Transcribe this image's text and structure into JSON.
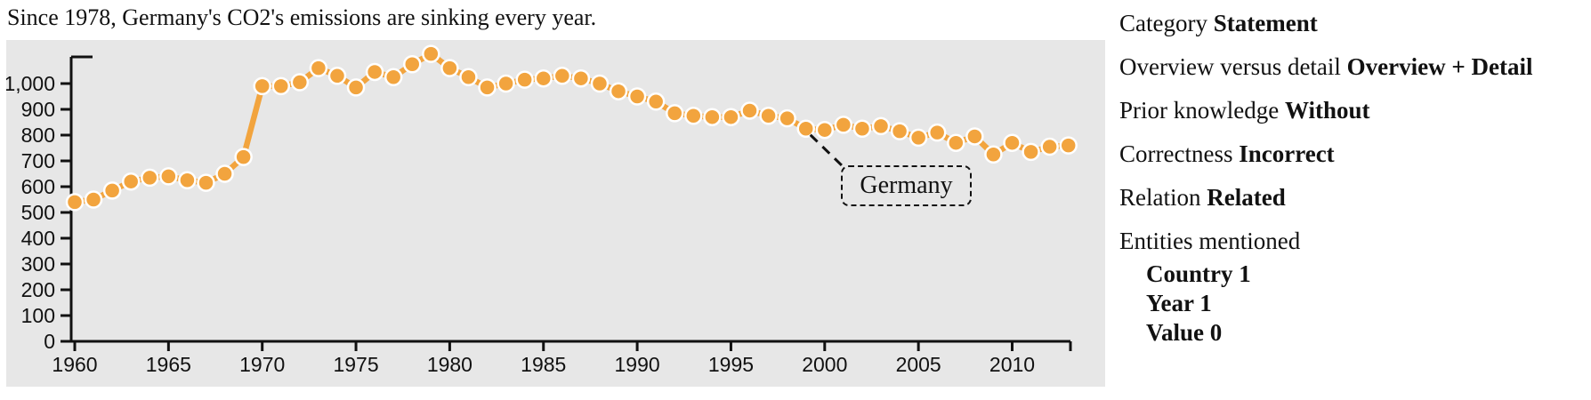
{
  "title": "Since 1978, Germany's CO2's emissions are sinking every year.",
  "chart_data": {
    "type": "line",
    "title": "Since 1978, Germany's CO2's emissions are sinking every year.",
    "series": [
      {
        "name": "Germany",
        "x": [
          1960,
          1961,
          1962,
          1963,
          1964,
          1965,
          1966,
          1967,
          1968,
          1969,
          1970,
          1971,
          1972,
          1973,
          1974,
          1975,
          1976,
          1977,
          1978,
          1979,
          1980,
          1981,
          1982,
          1983,
          1984,
          1985,
          1986,
          1987,
          1988,
          1989,
          1990,
          1991,
          1992,
          1993,
          1994,
          1995,
          1996,
          1997,
          1998,
          1999,
          2000,
          2001,
          2002,
          2003,
          2004,
          2005,
          2006,
          2007,
          2008,
          2009,
          2010,
          2011,
          2012,
          2013
        ],
        "values": [
          540,
          550,
          585,
          620,
          635,
          640,
          625,
          615,
          650,
          715,
          990,
          990,
          1005,
          1060,
          1030,
          985,
          1045,
          1025,
          1075,
          1115,
          1060,
          1025,
          985,
          1000,
          1015,
          1020,
          1030,
          1020,
          1000,
          970,
          950,
          930,
          885,
          875,
          870,
          870,
          895,
          875,
          865,
          825,
          820,
          840,
          825,
          835,
          815,
          790,
          810,
          770,
          795,
          725,
          770,
          735,
          755,
          760
        ]
      }
    ],
    "xlabel": "",
    "ylabel": "",
    "xlim": [
      1960,
      2013
    ],
    "ylim": [
      0,
      1120
    ],
    "xticks": [
      1960,
      1965,
      1970,
      1975,
      1980,
      1985,
      1990,
      1995,
      2000,
      2005,
      2010
    ],
    "xtick_labels": [
      "1960",
      "1965",
      "1970",
      "1975",
      "1980",
      "1985",
      "1990",
      "1995",
      "2000",
      "2005",
      "2010"
    ],
    "yticks": [
      0,
      100,
      200,
      300,
      400,
      500,
      600,
      700,
      800,
      900,
      1000
    ],
    "ytick_labels": [
      "0",
      "100",
      "200",
      "300",
      "400",
      "500",
      "600",
      "700",
      "800",
      "900",
      "1,000"
    ],
    "grid": false,
    "legend": "none",
    "annotation": {
      "text": "Germany",
      "attach_year": 1999
    },
    "colors": {
      "marker": "#F2A43E",
      "line": "#F2A43E",
      "plot_bg": "#E7E7E7",
      "axis": "#111111"
    }
  },
  "callout": {
    "label": "Germany"
  },
  "metadata_panel": {
    "rows": [
      {
        "label": "Category",
        "value": "Statement"
      },
      {
        "label": "Overview versus detail",
        "value": "Overview + Detail"
      },
      {
        "label": "Prior knowledge",
        "value": "Without"
      },
      {
        "label": "Correctness",
        "value": "Incorrect"
      },
      {
        "label": "Relation",
        "value": "Related"
      },
      {
        "label": "Entities mentioned",
        "value": ""
      }
    ],
    "entities": [
      {
        "name": "Country",
        "count": "Country 1"
      },
      {
        "name": "Year",
        "count": "Year 1"
      },
      {
        "name": "Value",
        "count": "Value 0"
      }
    ]
  }
}
